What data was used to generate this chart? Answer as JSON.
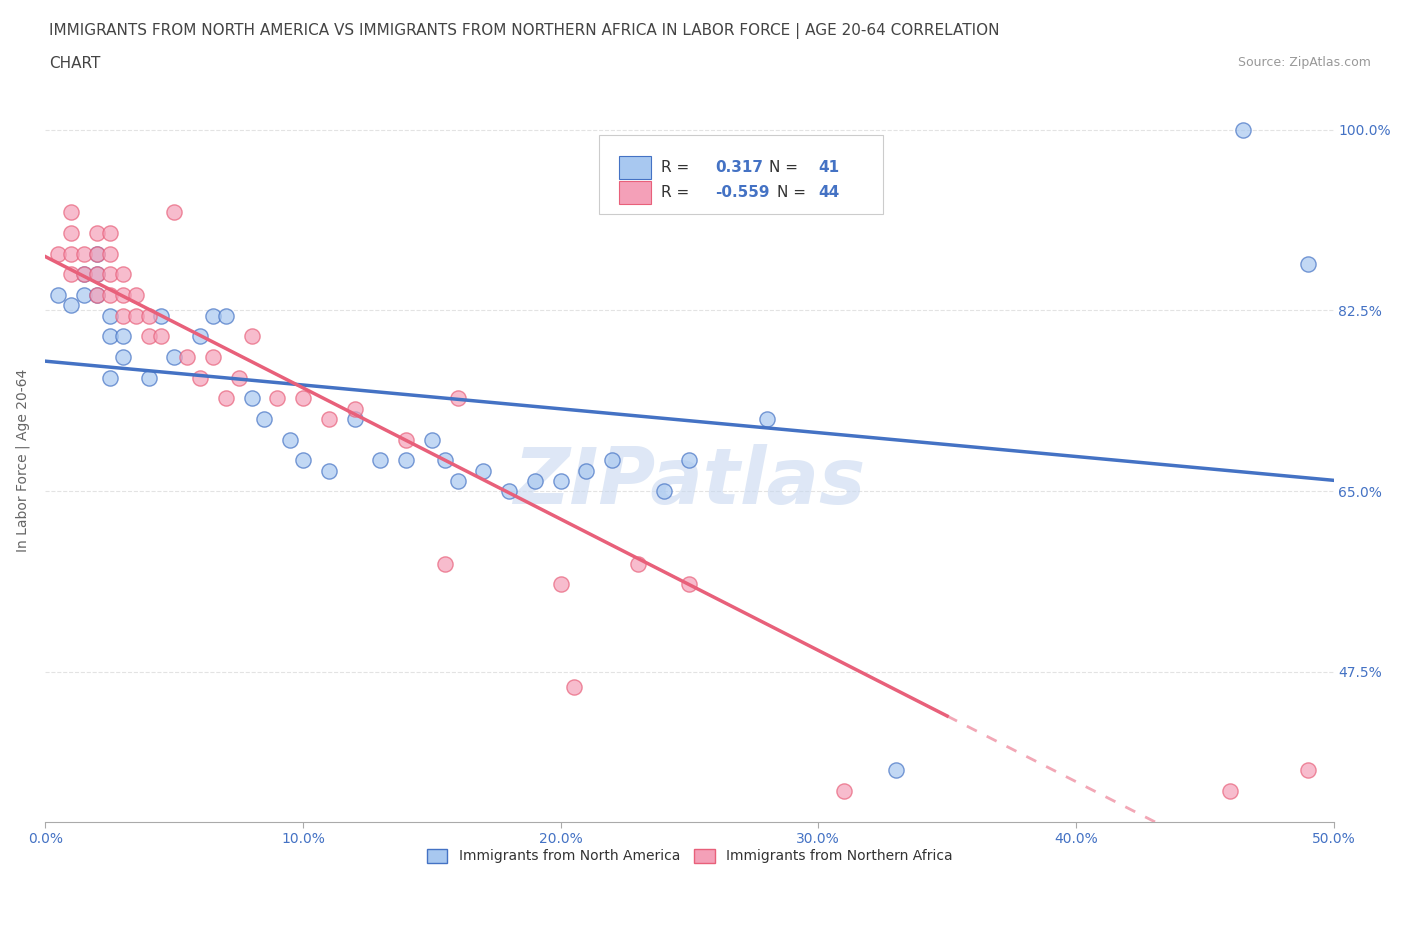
{
  "title_line1": "IMMIGRANTS FROM NORTH AMERICA VS IMMIGRANTS FROM NORTHERN AFRICA IN LABOR FORCE | AGE 20-64 CORRELATION",
  "title_line2": "CHART",
  "source_text": "Source: ZipAtlas.com",
  "ylabel": "In Labor Force | Age 20-64",
  "xlim": [
    0.0,
    0.5
  ],
  "ylim": [
    0.33,
    1.03
  ],
  "xtick_labels": [
    "0.0%",
    "",
    "10.0%",
    "",
    "20.0%",
    "",
    "30.0%",
    "",
    "40.0%",
    "",
    "50.0%"
  ],
  "xtick_values": [
    0.0,
    0.05,
    0.1,
    0.15,
    0.2,
    0.25,
    0.3,
    0.35,
    0.4,
    0.45,
    0.5
  ],
  "xtick_display": [
    "0.0%",
    "10.0%",
    "20.0%",
    "30.0%",
    "40.0%",
    "50.0%"
  ],
  "xtick_display_vals": [
    0.0,
    0.1,
    0.2,
    0.3,
    0.4,
    0.5
  ],
  "ytick_labels_right": [
    "47.5%",
    "65.0%",
    "82.5%",
    "100.0%"
  ],
  "ytick_values_right": [
    0.475,
    0.65,
    0.825,
    1.0
  ],
  "blue_color": "#A8C8F0",
  "pink_color": "#F4A0B8",
  "blue_line_color": "#4472C4",
  "pink_line_color": "#E8607A",
  "legend_r_blue": "0.317",
  "legend_n_blue": "41",
  "legend_r_pink": "-0.559",
  "legend_n_pink": "44",
  "legend_label_blue": "Immigrants from North America",
  "legend_label_pink": "Immigrants from Northern Africa",
  "watermark": "ZIPatlas",
  "watermark_color": "#C8D8F0",
  "background_color": "#FFFFFF",
  "blue_scatter_x": [
    0.005,
    0.01,
    0.015,
    0.015,
    0.02,
    0.02,
    0.02,
    0.025,
    0.025,
    0.025,
    0.03,
    0.03,
    0.04,
    0.045,
    0.05,
    0.06,
    0.065,
    0.07,
    0.08,
    0.085,
    0.095,
    0.1,
    0.11,
    0.12,
    0.13,
    0.14,
    0.15,
    0.155,
    0.16,
    0.17,
    0.18,
    0.19,
    0.2,
    0.21,
    0.22,
    0.24,
    0.25,
    0.28,
    0.33,
    0.465,
    0.49
  ],
  "blue_scatter_y": [
    0.84,
    0.83,
    0.84,
    0.86,
    0.84,
    0.86,
    0.88,
    0.76,
    0.8,
    0.82,
    0.78,
    0.8,
    0.76,
    0.82,
    0.78,
    0.8,
    0.82,
    0.82,
    0.74,
    0.72,
    0.7,
    0.68,
    0.67,
    0.72,
    0.68,
    0.68,
    0.7,
    0.68,
    0.66,
    0.67,
    0.65,
    0.66,
    0.66,
    0.67,
    0.68,
    0.65,
    0.68,
    0.72,
    0.38,
    1.0,
    0.87
  ],
  "pink_scatter_x": [
    0.005,
    0.01,
    0.01,
    0.01,
    0.01,
    0.015,
    0.015,
    0.02,
    0.02,
    0.02,
    0.02,
    0.025,
    0.025,
    0.025,
    0.025,
    0.03,
    0.03,
    0.03,
    0.035,
    0.035,
    0.04,
    0.04,
    0.045,
    0.05,
    0.055,
    0.06,
    0.065,
    0.07,
    0.075,
    0.08,
    0.09,
    0.1,
    0.11,
    0.12,
    0.14,
    0.155,
    0.16,
    0.2,
    0.205,
    0.23,
    0.25,
    0.31,
    0.46,
    0.49
  ],
  "pink_scatter_y": [
    0.88,
    0.86,
    0.88,
    0.9,
    0.92,
    0.86,
    0.88,
    0.84,
    0.86,
    0.88,
    0.9,
    0.84,
    0.86,
    0.88,
    0.9,
    0.82,
    0.84,
    0.86,
    0.82,
    0.84,
    0.8,
    0.82,
    0.8,
    0.92,
    0.78,
    0.76,
    0.78,
    0.74,
    0.76,
    0.8,
    0.74,
    0.74,
    0.72,
    0.73,
    0.7,
    0.58,
    0.74,
    0.56,
    0.46,
    0.58,
    0.56,
    0.36,
    0.36,
    0.38
  ],
  "grid_color": "#E0E0E0",
  "title_fontsize": 11,
  "axis_label_fontsize": 10,
  "tick_fontsize": 10,
  "legend_fontsize": 11
}
